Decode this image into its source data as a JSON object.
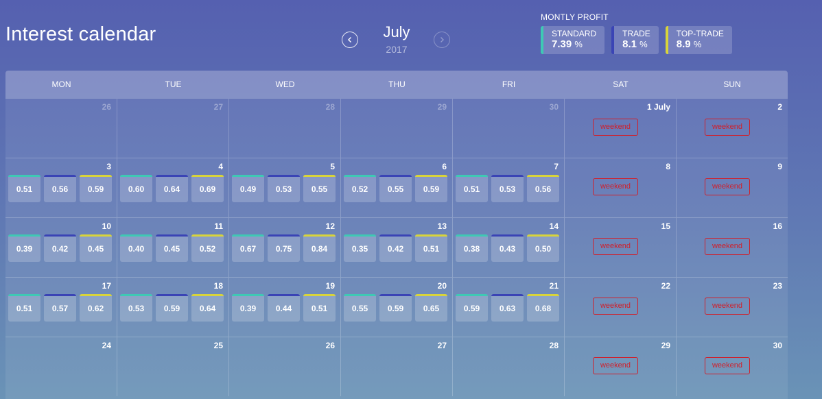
{
  "title": "Interest calendar",
  "nav": {
    "month": "July",
    "year": "2017"
  },
  "profit": {
    "title": "MONTLY PROFIT",
    "cards": [
      {
        "label": "STANDARD",
        "value": "7.39",
        "unit": "%",
        "color": "#3ec9b4"
      },
      {
        "label": "TRADE",
        "value": "8.1",
        "unit": "%",
        "color": "#3a44b5"
      },
      {
        "label": "TOP-TRADE",
        "value": "8.9",
        "unit": "%",
        "color": "#d8d43a"
      }
    ]
  },
  "weekdays": [
    "MON",
    "TUE",
    "WED",
    "THU",
    "FRI",
    "SAT",
    "SUN"
  ],
  "weekend_label": "weekend",
  "weeks": [
    [
      {
        "day": "26",
        "muted": true
      },
      {
        "day": "27",
        "muted": true
      },
      {
        "day": "28",
        "muted": true
      },
      {
        "day": "29",
        "muted": true
      },
      {
        "day": "30",
        "muted": true
      },
      {
        "day": "1 July",
        "weekend": true
      },
      {
        "day": "2",
        "weekend": true
      }
    ],
    [
      {
        "day": "3",
        "rates": [
          "0.51",
          "0.56",
          "0.59"
        ]
      },
      {
        "day": "4",
        "rates": [
          "0.60",
          "0.64",
          "0.69"
        ]
      },
      {
        "day": "5",
        "rates": [
          "0.49",
          "0.53",
          "0.55"
        ]
      },
      {
        "day": "6",
        "rates": [
          "0.52",
          "0.55",
          "0.59"
        ]
      },
      {
        "day": "7",
        "rates": [
          "0.51",
          "0.53",
          "0.56"
        ]
      },
      {
        "day": "8",
        "weekend": true
      },
      {
        "day": "9",
        "weekend": true
      }
    ],
    [
      {
        "day": "10",
        "rates": [
          "0.39",
          "0.42",
          "0.45"
        ]
      },
      {
        "day": "11",
        "rates": [
          "0.40",
          "0.45",
          "0.52"
        ]
      },
      {
        "day": "12",
        "rates": [
          "0.67",
          "0.75",
          "0.84"
        ]
      },
      {
        "day": "13",
        "rates": [
          "0.35",
          "0.42",
          "0.51"
        ]
      },
      {
        "day": "14",
        "rates": [
          "0.38",
          "0.43",
          "0.50"
        ]
      },
      {
        "day": "15",
        "weekend": true
      },
      {
        "day": "16",
        "weekend": true
      }
    ],
    [
      {
        "day": "17",
        "rates": [
          "0.51",
          "0.57",
          "0.62"
        ]
      },
      {
        "day": "18",
        "rates": [
          "0.53",
          "0.59",
          "0.64"
        ]
      },
      {
        "day": "19",
        "rates": [
          "0.39",
          "0.44",
          "0.51"
        ]
      },
      {
        "day": "20",
        "rates": [
          "0.55",
          "0.59",
          "0.65"
        ]
      },
      {
        "day": "21",
        "rates": [
          "0.59",
          "0.63",
          "0.68"
        ]
      },
      {
        "day": "22",
        "weekend": true
      },
      {
        "day": "23",
        "weekend": true
      }
    ],
    [
      {
        "day": "24"
      },
      {
        "day": "25"
      },
      {
        "day": "26"
      },
      {
        "day": "27"
      },
      {
        "day": "28"
      },
      {
        "day": "29",
        "weekend": true
      },
      {
        "day": "30",
        "weekend": true
      }
    ]
  ]
}
